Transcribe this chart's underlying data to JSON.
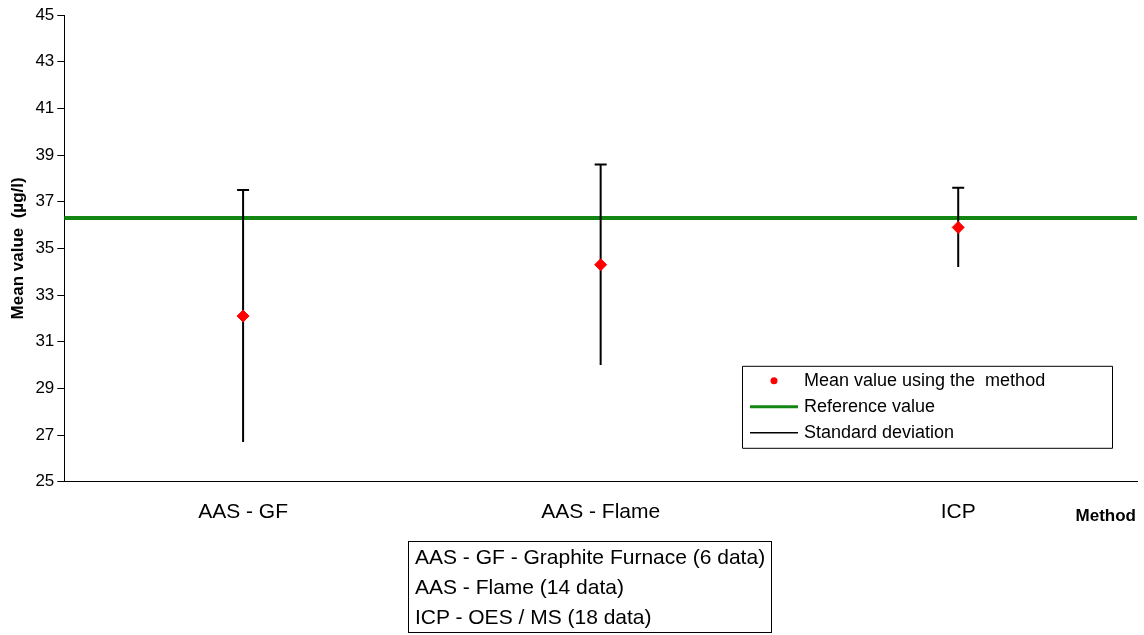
{
  "chart_data": {
    "type": "scatter",
    "categories": [
      "AAS - GF",
      "AAS - Flame",
      "ICP"
    ],
    "series": [
      {
        "name": "Mean value using the  method",
        "color": "#ff0000",
        "values": [
          32.1,
          34.3,
          35.9
        ],
        "errors": [
          [
            26.7,
            37.5
          ],
          [
            30.0,
            38.6
          ],
          [
            34.2,
            37.6
          ]
        ]
      }
    ],
    "marker": "diamond",
    "xlabel": "Method",
    "ylabel": "Mean value  (µg/l)",
    "ylim": [
      25,
      45
    ],
    "yticks": [
      25,
      27,
      29,
      31,
      33,
      35,
      37,
      39,
      41,
      43,
      45
    ],
    "ref_lines": [
      {
        "axis": "y",
        "value": 36.3,
        "label": "Reference value",
        "color": "#138513"
      }
    ],
    "annotations": [
      "Standard deviation",
      "AAS - GF - Graphite Furnace (6 data)",
      "AAS - Flame  (14 data)",
      "ICP - OES / MS (18 data)"
    ],
    "legend": "bottom right",
    "grid": false
  }
}
